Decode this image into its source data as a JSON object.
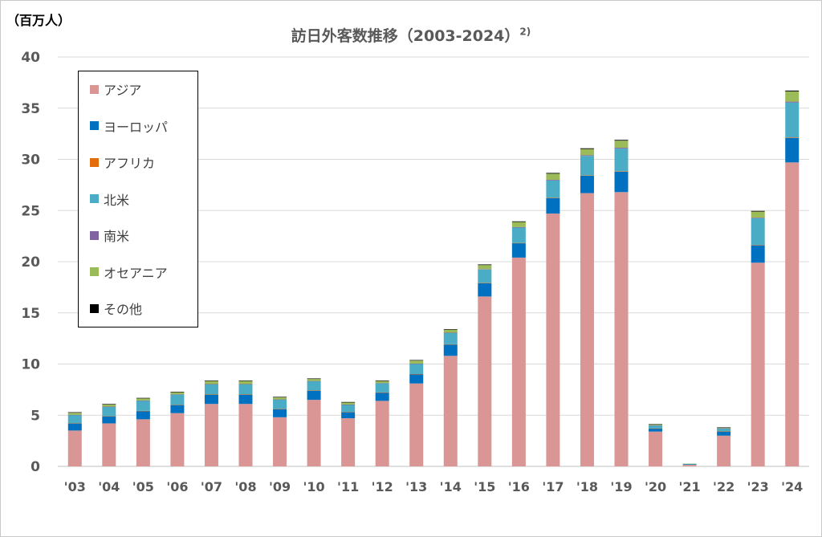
{
  "chart_data": {
    "type": "bar",
    "stacked": true,
    "title": "訪日外客数推移（2003-2024）",
    "title_note": "2)",
    "unit_label": "（百万人）",
    "xlabel": "",
    "ylabel": "",
    "ylim": [
      0,
      40
    ],
    "yticks": [
      0,
      5,
      10,
      15,
      20,
      25,
      30,
      35,
      40
    ],
    "grid": true,
    "legend_position": "left-inside",
    "categories": [
      "'03",
      "'04",
      "'05",
      "'06",
      "'07",
      "'08",
      "'09",
      "'10",
      "'11",
      "'12",
      "'13",
      "'14",
      "'15",
      "'16",
      "'17",
      "'18",
      "'19",
      "'20",
      "'21",
      "'22",
      "'23",
      "'24"
    ],
    "series": [
      {
        "name": "アジア",
        "color": "#d99694",
        "values": [
          3.5,
          4.2,
          4.6,
          5.2,
          6.1,
          6.1,
          4.8,
          6.5,
          4.7,
          6.4,
          8.1,
          10.8,
          16.6,
          20.4,
          24.7,
          26.7,
          26.8,
          3.4,
          0.15,
          3.0,
          19.9,
          29.7
        ]
      },
      {
        "name": "ヨーロッパ",
        "color": "#0070c0",
        "values": [
          0.7,
          0.7,
          0.8,
          0.8,
          0.9,
          0.9,
          0.8,
          0.9,
          0.6,
          0.8,
          0.9,
          1.1,
          1.3,
          1.4,
          1.5,
          1.7,
          2.0,
          0.3,
          0.05,
          0.4,
          1.7,
          2.4
        ]
      },
      {
        "name": "アフリカ",
        "color": "#e46c0a",
        "values": [
          0.02,
          0.02,
          0.02,
          0.02,
          0.02,
          0.02,
          0.02,
          0.02,
          0.02,
          0.02,
          0.02,
          0.03,
          0.03,
          0.03,
          0.04,
          0.04,
          0.05,
          0.01,
          0.0,
          0.01,
          0.04,
          0.05
        ]
      },
      {
        "name": "北米",
        "color": "#4bacc6",
        "values": [
          0.8,
          0.9,
          1.0,
          1.0,
          1.0,
          1.0,
          0.9,
          0.9,
          0.7,
          0.9,
          1.0,
          1.1,
          1.3,
          1.5,
          1.7,
          1.9,
          2.2,
          0.3,
          0.05,
          0.3,
          2.6,
          3.4
        ]
      },
      {
        "name": "南米",
        "color": "#8064a2",
        "values": [
          0.02,
          0.02,
          0.02,
          0.02,
          0.02,
          0.02,
          0.02,
          0.02,
          0.02,
          0.02,
          0.02,
          0.03,
          0.04,
          0.05,
          0.06,
          0.07,
          0.08,
          0.01,
          0.0,
          0.01,
          0.06,
          0.09
        ]
      },
      {
        "name": "オセアニア",
        "color": "#9bbb59",
        "values": [
          0.2,
          0.2,
          0.2,
          0.2,
          0.3,
          0.3,
          0.2,
          0.2,
          0.2,
          0.2,
          0.3,
          0.3,
          0.4,
          0.5,
          0.6,
          0.6,
          0.7,
          0.1,
          0.01,
          0.08,
          0.6,
          1.0
        ]
      },
      {
        "name": "その他",
        "color": "#000000",
        "values": [
          0.05,
          0.05,
          0.05,
          0.05,
          0.05,
          0.05,
          0.05,
          0.05,
          0.05,
          0.05,
          0.05,
          0.05,
          0.06,
          0.06,
          0.07,
          0.07,
          0.07,
          0.01,
          0.0,
          0.01,
          0.06,
          0.08
        ]
      }
    ]
  }
}
